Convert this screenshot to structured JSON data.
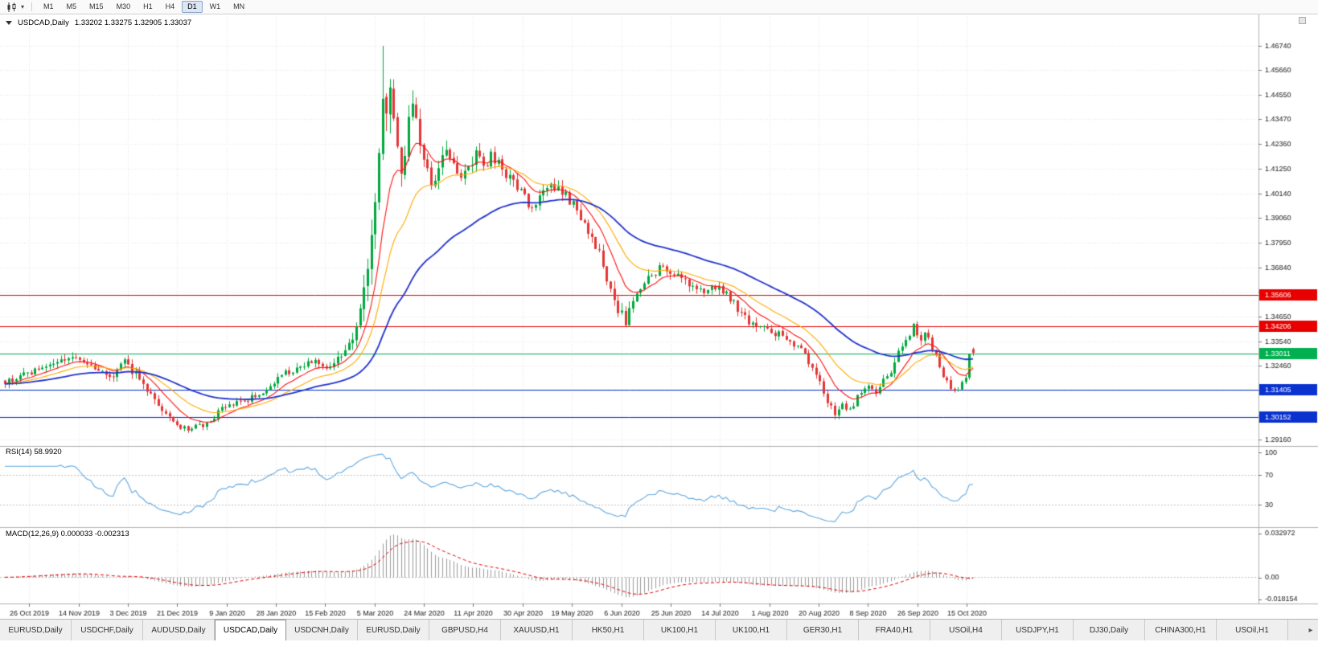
{
  "toolbar": {
    "timeframes": [
      {
        "label": "M1",
        "active": false
      },
      {
        "label": "M5",
        "active": false
      },
      {
        "label": "M15",
        "active": false
      },
      {
        "label": "M30",
        "active": false
      },
      {
        "label": "H1",
        "active": false
      },
      {
        "label": "H4",
        "active": false
      },
      {
        "label": "D1",
        "active": true
      },
      {
        "label": "W1",
        "active": false
      },
      {
        "label": "MN",
        "active": false
      }
    ]
  },
  "chart_header": {
    "symbol": "USDCAD,Daily",
    "ohlc": "1.33202 1.33275 1.32905 1.33037"
  },
  "indicators": {
    "rsi_label": "RSI(14) 58.9920",
    "macd_label": "MACD(12,26,9) 0.000033 -0.002313"
  },
  "tabs": [
    {
      "label": "EURUSD,Daily",
      "active": false
    },
    {
      "label": "USDCHF,Daily",
      "active": false
    },
    {
      "label": "AUDUSD,Daily",
      "active": false
    },
    {
      "label": "USDCAD,Daily",
      "active": true
    },
    {
      "label": "USDCNH,Daily",
      "active": false
    },
    {
      "label": "EURUSD,Daily",
      "active": false
    },
    {
      "label": "GBPUSD,H4",
      "active": false
    },
    {
      "label": "XAUUSD,H1",
      "active": false
    },
    {
      "label": "HK50,H1",
      "active": false
    },
    {
      "label": "UK100,H1",
      "active": false
    },
    {
      "label": "UK100,H1",
      "active": false
    },
    {
      "label": "GER30,H1",
      "active": false
    },
    {
      "label": "FRA40,H1",
      "active": false
    },
    {
      "label": "USOil,H4",
      "active": false
    },
    {
      "label": "USDJPY,H1",
      "active": false
    },
    {
      "label": "DJ30,Daily",
      "active": false
    },
    {
      "label": "CHINA300,H1",
      "active": false
    },
    {
      "label": "USOil,H1",
      "active": false
    }
  ],
  "tab_scroll": "▸",
  "chart_data": {
    "type": "candlestick",
    "symbol": "USDCAD",
    "period": "Daily",
    "bars": 260,
    "price_axis": {
      "top_value": 1.48,
      "bottom_value": 1.2895,
      "ticks": [
        "1.46740",
        "1.45660",
        "1.44550",
        "1.43470",
        "1.42360",
        "1.41250",
        "1.40140",
        "1.39060",
        "1.37950",
        "1.36840",
        "1.35760",
        "1.34650",
        "1.33540",
        "1.32460",
        "1.31350",
        "1.30240",
        "1.29160"
      ]
    },
    "date_ticks": [
      "26 Oct 2019",
      "14 Nov 2019",
      "3 Dec 2019",
      "21 Dec 2019",
      "9 Jan 2020",
      "28 Jan 2020",
      "15 Feb 2020",
      "5 Mar 2020",
      "24 Mar 2020",
      "11 Apr 2020",
      "30 Apr 2020",
      "19 May 2020",
      "6 Jun 2020",
      "25 Jun 2020",
      "14 Jul 2020",
      "1 Aug 2020",
      "20 Aug 2020",
      "8 Sep 2020",
      "26 Sep 2020",
      "15 Oct 2020"
    ],
    "anchors": [
      [
        0,
        1.3175,
        0.0035
      ],
      [
        6,
        1.321,
        0.0035
      ],
      [
        13,
        1.3255,
        0.0035
      ],
      [
        19,
        1.3272,
        0.0035
      ],
      [
        24,
        1.324,
        0.0035
      ],
      [
        29,
        1.32,
        0.0035
      ],
      [
        32,
        1.3262,
        0.0033
      ],
      [
        36,
        1.319,
        0.004
      ],
      [
        40,
        1.3105,
        0.004
      ],
      [
        44,
        1.301,
        0.0035
      ],
      [
        47,
        1.2962,
        0.0025
      ],
      [
        52,
        1.2975,
        0.0025
      ],
      [
        55,
        1.2992,
        0.0026
      ],
      [
        58,
        1.3055,
        0.003
      ],
      [
        62,
        1.308,
        0.003
      ],
      [
        66,
        1.3105,
        0.003
      ],
      [
        70,
        1.3132,
        0.003
      ],
      [
        74,
        1.3205,
        0.0032
      ],
      [
        78,
        1.3238,
        0.0032
      ],
      [
        82,
        1.3262,
        0.0032
      ],
      [
        86,
        1.3245,
        0.0035
      ],
      [
        89,
        1.3272,
        0.004
      ],
      [
        92,
        1.334,
        0.005
      ],
      [
        94,
        1.3425,
        0.006
      ],
      [
        96,
        1.356,
        0.009
      ],
      [
        98,
        1.379,
        0.012
      ],
      [
        99,
        1.399,
        0.014
      ],
      [
        100,
        1.423,
        0.016
      ],
      [
        101,
        1.446,
        0.017
      ],
      [
        102,
        1.433,
        0.015
      ],
      [
        103,
        1.448,
        0.014
      ],
      [
        104,
        1.436,
        0.013
      ],
      [
        105,
        1.418,
        0.012
      ],
      [
        106,
        1.4075,
        0.011
      ],
      [
        107,
        1.42,
        0.01
      ],
      [
        108,
        1.433,
        0.01
      ],
      [
        109,
        1.443,
        0.01
      ],
      [
        110,
        1.435,
        0.009
      ],
      [
        111,
        1.423,
        0.009
      ],
      [
        112,
        1.418,
        0.008
      ],
      [
        113,
        1.409,
        0.008
      ],
      [
        114,
        1.4025,
        0.008
      ],
      [
        116,
        1.412,
        0.007
      ],
      [
        118,
        1.423,
        0.007
      ],
      [
        120,
        1.416,
        0.007
      ],
      [
        122,
        1.4095,
        0.006
      ],
      [
        124,
        1.414,
        0.006
      ],
      [
        126,
        1.418,
        0.006
      ],
      [
        128,
        1.4125,
        0.006
      ],
      [
        130,
        1.419,
        0.0055
      ],
      [
        132,
        1.415,
        0.0055
      ],
      [
        134,
        1.41,
        0.005
      ],
      [
        136,
        1.4062,
        0.005
      ],
      [
        138,
        1.4035,
        0.005
      ],
      [
        140,
        1.3945,
        0.005
      ],
      [
        142,
        1.398,
        0.0045
      ],
      [
        145,
        1.403,
        0.0045
      ],
      [
        148,
        1.4058,
        0.0045
      ],
      [
        150,
        1.4002,
        0.0045
      ],
      [
        152,
        1.3962,
        0.0045
      ],
      [
        154,
        1.39,
        0.0045
      ],
      [
        157,
        1.382,
        0.0045
      ],
      [
        160,
        1.37,
        0.005
      ],
      [
        162,
        1.3585,
        0.0055
      ],
      [
        164,
        1.35,
        0.0055
      ],
      [
        166,
        1.3438,
        0.0055
      ],
      [
        168,
        1.352,
        0.005
      ],
      [
        170,
        1.359,
        0.005
      ],
      [
        173,
        1.3652,
        0.0045
      ],
      [
        176,
        1.37,
        0.0045
      ],
      [
        178,
        1.3672,
        0.0045
      ],
      [
        181,
        1.3622,
        0.004
      ],
      [
        184,
        1.3605,
        0.004
      ],
      [
        188,
        1.3582,
        0.004
      ],
      [
        191,
        1.3597,
        0.004
      ],
      [
        194,
        1.3552,
        0.004
      ],
      [
        197,
        1.3482,
        0.004
      ],
      [
        200,
        1.3425,
        0.004
      ],
      [
        204,
        1.3402,
        0.0035
      ],
      [
        208,
        1.338,
        0.0035
      ],
      [
        212,
        1.3338,
        0.0035
      ],
      [
        215,
        1.3262,
        0.0035
      ],
      [
        218,
        1.3176,
        0.0035
      ],
      [
        220,
        1.309,
        0.0035
      ],
      [
        222,
        1.3022,
        0.003
      ],
      [
        224,
        1.308,
        0.003
      ],
      [
        226,
        1.3046,
        0.003
      ],
      [
        228,
        1.3105,
        0.003
      ],
      [
        231,
        1.3155,
        0.003
      ],
      [
        233,
        1.3132,
        0.003
      ],
      [
        235,
        1.318,
        0.003
      ],
      [
        237,
        1.3222,
        0.003
      ],
      [
        239,
        1.33,
        0.0035
      ],
      [
        241,
        1.3372,
        0.0038
      ],
      [
        243,
        1.3415,
        0.0038
      ],
      [
        245,
        1.3362,
        0.0035
      ],
      [
        246,
        1.3396,
        0.0035
      ],
      [
        248,
        1.333,
        0.0035
      ],
      [
        250,
        1.3242,
        0.0035
      ],
      [
        252,
        1.3172,
        0.0032
      ],
      [
        254,
        1.3142,
        0.0032
      ],
      [
        256,
        1.316,
        0.0032
      ],
      [
        257,
        1.3186,
        0.0028
      ],
      [
        258,
        1.3302,
        0.002
      ],
      [
        259,
        1.33037,
        0.002
      ]
    ],
    "spike": {
      "bar": 101,
      "high": 1.4674
    },
    "last_bar": {
      "open": 1.33202,
      "high": 1.33275,
      "low": 1.32905,
      "close": 1.33037
    },
    "hlines": [
      {
        "value": 1.35606,
        "label": "1.35606",
        "color": "#e80000"
      },
      {
        "value": 1.34206,
        "label": "1.34206",
        "color": "#e80000"
      },
      {
        "value": 1.33011,
        "label": "1.33011",
        "color": "#00b050"
      },
      {
        "value": 1.31405,
        "label": "1.31405",
        "color": "#0a32cf"
      },
      {
        "value": 1.30152,
        "label": "1.30152",
        "color": "#0a32cf"
      }
    ],
    "moving_averages": [
      {
        "period": 10,
        "color": "#ff1010",
        "width": 1.1
      },
      {
        "period": 21,
        "color": "#ffaa00",
        "width": 1.1
      },
      {
        "period": 50,
        "color": "#2233cc",
        "width": 1.8
      }
    ],
    "rsi": {
      "period": 14,
      "levels": [
        70,
        30
      ],
      "axis_labels": [
        "100",
        "70",
        "30"
      ]
    },
    "macd": {
      "fast": 12,
      "slow": 26,
      "signal": 9,
      "axis_top": 0.036,
      "axis_bottom": -0.0195,
      "axis_labels": [
        "0.032972",
        "0.00",
        "-0.018154"
      ]
    },
    "colors": {
      "up": "#00a83e",
      "down": "#e43535",
      "grid": "#e7e7e7",
      "axis_text": "#1a1a1a",
      "rsi_line": "#63a8dd",
      "macd_hist": "#9b9b9b",
      "macd_signal": "#e00000"
    }
  }
}
